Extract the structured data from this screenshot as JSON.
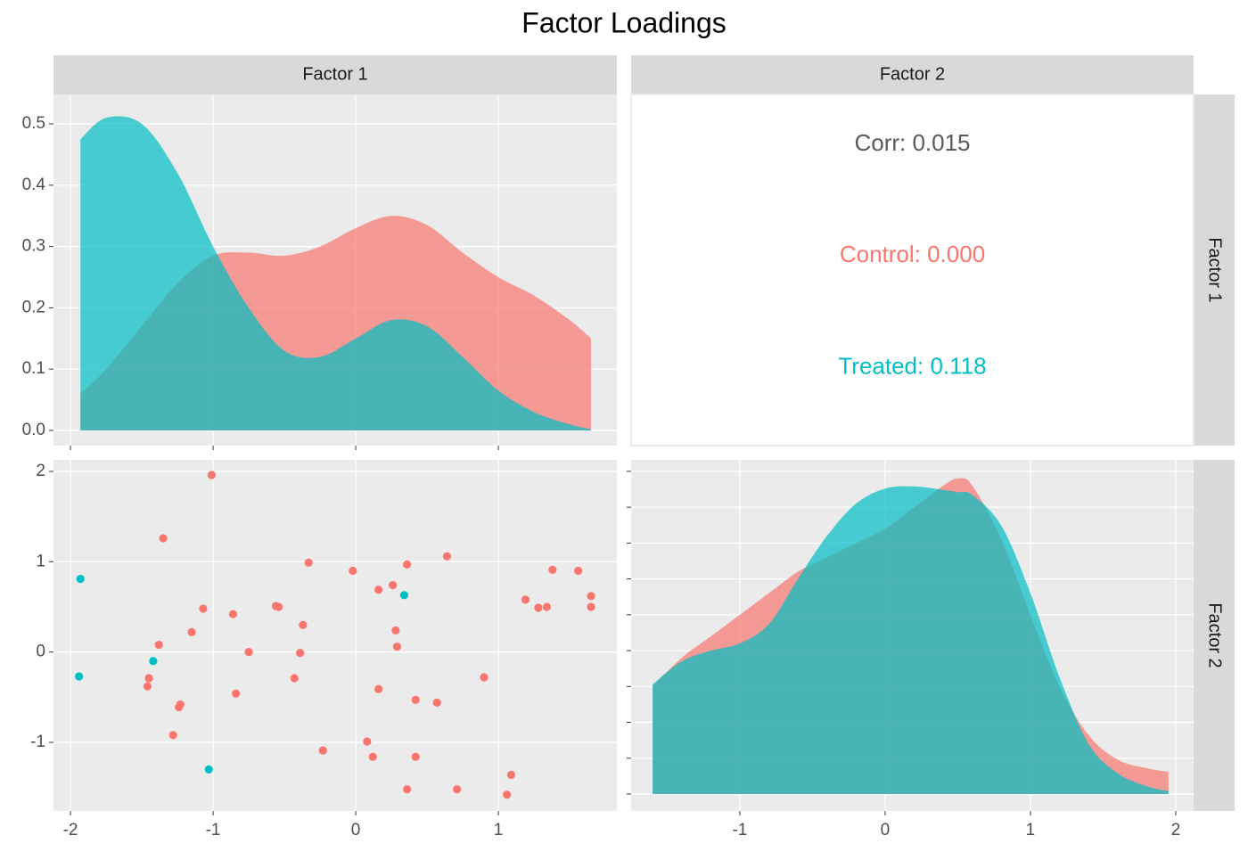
{
  "title": "Factor Loadings",
  "strips": {
    "columns": [
      "Factor 1",
      "Factor 2"
    ],
    "rows": [
      "Factor 1",
      "Factor 2"
    ]
  },
  "chart_data": [
    {
      "type": "area",
      "x": [
        -1.93,
        -1.75,
        -1.5,
        -1.25,
        -1,
        -0.75,
        -0.5,
        -0.25,
        0,
        0.25,
        0.5,
        0.75,
        1,
        1.25,
        1.5,
        1.65
      ],
      "series": [
        {
          "color": "#F8766D",
          "values": [
            0.06,
            0.1,
            0.17,
            0.24,
            0.285,
            0.29,
            0.285,
            0.3,
            0.33,
            0.35,
            0.335,
            0.29,
            0.25,
            0.22,
            0.18,
            0.15
          ]
        },
        {
          "color": "#00BFC4",
          "values": [
            0.475,
            0.51,
            0.5,
            0.42,
            0.3,
            0.2,
            0.13,
            0.12,
            0.15,
            0.18,
            0.17,
            0.12,
            0.065,
            0.03,
            0.01,
            0.002
          ]
        }
      ],
      "xlim": [
        -2.119,
        1.831
      ],
      "ylim": [
        -0.0247,
        0.548
      ],
      "xticks": [
        -2,
        -1,
        0,
        1
      ],
      "yticks": [
        {
          "value": 0,
          "label": "0.0"
        },
        0.1,
        0.2,
        0.3,
        0.4,
        0.5
      ],
      "xtick_labels": false,
      "ytick_labels": true,
      "grid": true
    },
    {
      "type": "text",
      "lines": [
        {
          "text": "Corr: 0.015",
          "color": "#595959"
        },
        {
          "text": "Control: 0.000",
          "color": "#F8766D"
        },
        {
          "text": "Treated: 0.118",
          "color": "#00BFC4"
        }
      ]
    },
    {
      "type": "scatter",
      "series": [
        {
          "color": "#F8766D",
          "x": [
            -1.01,
            -1.35,
            -0.33,
            -0.02,
            0.36,
            0.64,
            0.16,
            0.26,
            -0.56,
            -0.54,
            -1.07,
            -0.86,
            -0.37,
            -1.15,
            0.28,
            0.29,
            -1.38,
            -0.75,
            -0.39,
            1.19,
            1.38,
            1.56,
            1.65,
            1.65,
            1.28,
            1.34,
            0.9,
            -0.43,
            -1.45,
            -1.46,
            -0.84,
            0.16,
            0.42,
            0.57,
            -1.23,
            -1.24,
            -1.28,
            0.08,
            -0.23,
            0.12,
            0.42,
            0.36,
            0.71,
            1.09,
            1.06
          ],
          "values": [
            1.96,
            1.26,
            0.99,
            0.9,
            0.97,
            1.06,
            0.69,
            0.74,
            0.51,
            0.5,
            0.48,
            0.42,
            0.3,
            0.22,
            0.24,
            0.06,
            0.08,
            0,
            -0.01,
            0.58,
            0.91,
            0.9,
            0.62,
            0.5,
            0.49,
            0.5,
            -0.28,
            -0.29,
            -0.29,
            -0.38,
            -0.46,
            -0.41,
            -0.53,
            -0.56,
            -0.58,
            -0.61,
            -0.92,
            -0.99,
            -1.09,
            -1.16,
            -1.16,
            -1.52,
            -1.52,
            -1.36,
            -1.58
          ]
        },
        {
          "color": "#00BFC4",
          "x": [
            -1.93,
            -1.94,
            -1.42,
            0.34,
            -1.03
          ],
          "values": [
            0.81,
            -0.27,
            -0.1,
            0.63,
            -1.3
          ]
        }
      ],
      "xlim": [
        -2.119,
        1.831
      ],
      "ylim": [
        -1.76,
        2.128
      ],
      "xticks": [
        -2,
        -1,
        0,
        1
      ],
      "yticks": [
        -1,
        0,
        1,
        2
      ],
      "xtick_labels": true,
      "ytick_labels": true,
      "grid": true
    },
    {
      "type": "area",
      "x": [
        -1.6,
        -1.4,
        -1.2,
        -1,
        -0.8,
        -0.6,
        -0.4,
        -0.2,
        0,
        0.2,
        0.4,
        0.5,
        0.6,
        0.8,
        1,
        1.2,
        1.4,
        1.6,
        1.8,
        1.95
      ],
      "series": [
        {
          "color": "#F8766D",
          "values": [
            0.15,
            0.19,
            0.22,
            0.25,
            0.28,
            0.31,
            0.33,
            0.35,
            0.37,
            0.4,
            0.43,
            0.44,
            0.43,
            0.355,
            0.25,
            0.15,
            0.082,
            0.048,
            0.036,
            0.031
          ]
        },
        {
          "color": "#00BFC4",
          "values": [
            0.153,
            0.185,
            0.2,
            0.21,
            0.237,
            0.3,
            0.36,
            0.405,
            0.426,
            0.429,
            0.424,
            0.421,
            0.417,
            0.374,
            0.28,
            0.163,
            0.07,
            0.029,
            0.011,
            0.004
          ]
        }
      ],
      "xlim": [
        -1.748,
        2.123
      ],
      "ylim": [
        -0.0236,
        0.466
      ],
      "xticks": [
        -1,
        0,
        1,
        2
      ],
      "yticks": [
        0,
        0.05,
        0.1,
        0.15,
        0.2,
        0.25,
        0.3,
        0.35,
        0.4,
        0.45
      ],
      "xtick_labels": true,
      "ytick_labels": false,
      "grid": true
    }
  ]
}
